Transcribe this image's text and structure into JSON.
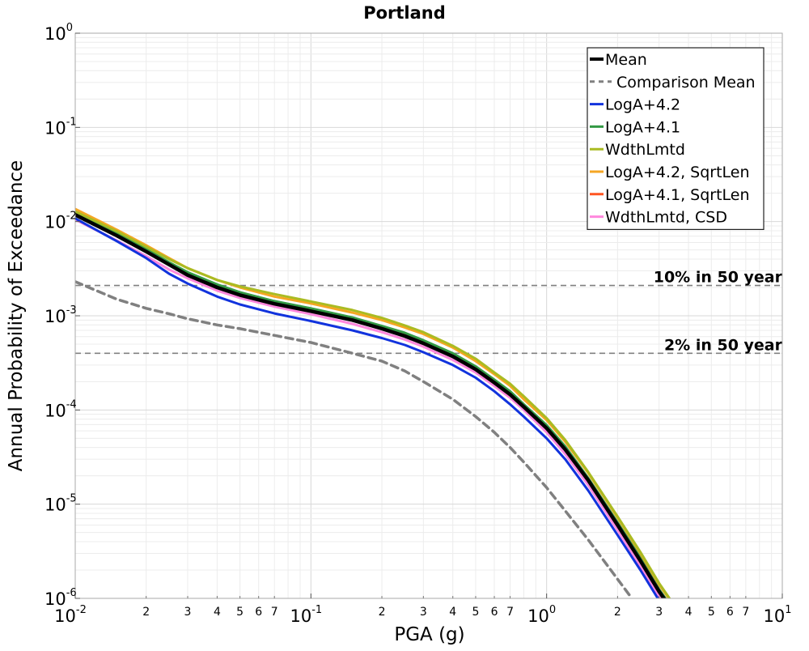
{
  "chart_data": {
    "type": "line",
    "title": "Portland",
    "xlabel": "PGA (g)",
    "ylabel": "Annual Probability of Exceedance",
    "xscale": "log",
    "yscale": "log",
    "xlim": [
      0.01,
      10
    ],
    "ylim": [
      1e-06,
      1
    ],
    "grid": true,
    "legend_position": "top-right",
    "x_major_ticks": [
      {
        "value": 0.01,
        "base": "10",
        "exp": "-2"
      },
      {
        "value": 0.1,
        "base": "10",
        "exp": "-1"
      },
      {
        "value": 1,
        "base": "10",
        "exp": "0"
      },
      {
        "value": 10,
        "base": "10",
        "exp": "1"
      }
    ],
    "x_minor_ticks": [
      {
        "value": 0.02,
        "label": "2"
      },
      {
        "value": 0.03,
        "label": "3"
      },
      {
        "value": 0.04,
        "label": "4"
      },
      {
        "value": 0.05,
        "label": "5"
      },
      {
        "value": 0.06,
        "label": "6"
      },
      {
        "value": 0.07,
        "label": "7"
      },
      {
        "value": 0.2,
        "label": "2"
      },
      {
        "value": 0.3,
        "label": "3"
      },
      {
        "value": 0.4,
        "label": "4"
      },
      {
        "value": 0.5,
        "label": "5"
      },
      {
        "value": 0.6,
        "label": "6"
      },
      {
        "value": 0.7,
        "label": "7"
      },
      {
        "value": 2,
        "label": "2"
      },
      {
        "value": 3,
        "label": "3"
      },
      {
        "value": 4,
        "label": "4"
      },
      {
        "value": 5,
        "label": "5"
      },
      {
        "value": 6,
        "label": "6"
      },
      {
        "value": 7,
        "label": "7"
      }
    ],
    "y_major_ticks": [
      {
        "value": 1,
        "base": "10",
        "exp": "0"
      },
      {
        "value": 0.1,
        "base": "10",
        "exp": "-1"
      },
      {
        "value": 0.01,
        "base": "10",
        "exp": "-2"
      },
      {
        "value": 0.001,
        "base": "10",
        "exp": "-3"
      },
      {
        "value": 0.0001,
        "base": "10",
        "exp": "-4"
      },
      {
        "value": 1e-05,
        "base": "10",
        "exp": "-5"
      },
      {
        "value": 1e-06,
        "base": "10",
        "exp": "-6"
      }
    ],
    "reference_lines": [
      {
        "label": "10% in 50 year",
        "y": 0.0021,
        "color": "#808080",
        "style": "dashed"
      },
      {
        "label": "2% in 50 year",
        "y": 0.0004,
        "color": "#808080",
        "style": "dashed"
      }
    ],
    "x": [
      0.01,
      0.015,
      0.02,
      0.025,
      0.03,
      0.04,
      0.05,
      0.07,
      0.1,
      0.15,
      0.2,
      0.25,
      0.3,
      0.4,
      0.5,
      0.6,
      0.7,
      0.8,
      1.0,
      1.2,
      1.5,
      2.0,
      2.5,
      3.0,
      3.4
    ],
    "series": [
      {
        "name": "Comparison Mean",
        "color": "#808080",
        "width": 3.5,
        "dashed": true,
        "x": [
          0.01,
          0.015,
          0.02,
          0.025,
          0.03,
          0.04,
          0.05,
          0.07,
          0.1,
          0.15,
          0.2,
          0.25,
          0.3,
          0.4,
          0.5,
          0.6,
          0.7,
          0.8,
          1.0,
          1.2,
          1.5,
          2.0,
          2.3
        ],
        "values": [
          0.0023,
          0.0015,
          0.0012,
          0.00105,
          0.00093,
          0.0008,
          0.00073,
          0.00062,
          0.00052,
          0.0004,
          0.00033,
          0.00026,
          0.0002,
          0.00013,
          8.5e-05,
          5.8e-05,
          4e-05,
          2.8e-05,
          1.5e-05,
          8.5e-06,
          4.2e-06,
          1.6e-06,
          1e-06
        ]
      },
      {
        "name": "WdthLmtd, CSD",
        "color": "#ff88dd",
        "width": 3,
        "values": [
          0.0105,
          0.0063,
          0.0043,
          0.0031,
          0.0025,
          0.00185,
          0.00155,
          0.00125,
          0.00104,
          0.00082,
          0.00067,
          0.00056,
          0.00047,
          0.00034,
          0.00025,
          0.00018,
          0.000135,
          0.0001,
          5.8e-05,
          3.4e-05,
          1.6e-05,
          5.3e-06,
          2.2e-06,
          1.05e-06,
          6.8e-07
        ]
      },
      {
        "name": "LogA+4.1, SqrtLen",
        "color": "#ff5522",
        "width": 3,
        "values": [
          0.0118,
          0.0071,
          0.0048,
          0.0035,
          0.0028,
          0.00205,
          0.0017,
          0.00137,
          0.00115,
          0.00092,
          0.00075,
          0.00063,
          0.00053,
          0.00038,
          0.00028,
          0.0002,
          0.00015,
          0.00011,
          6.6e-05,
          3.9e-05,
          1.85e-05,
          6.2e-06,
          2.6e-06,
          1.2e-06,
          7.8e-07
        ]
      },
      {
        "name": "LogA+4.1",
        "color": "#339944",
        "width": 3,
        "values": [
          0.0124,
          0.0075,
          0.0051,
          0.0037,
          0.0029,
          0.00215,
          0.00178,
          0.00143,
          0.0012,
          0.00096,
          0.00078,
          0.00066,
          0.00055,
          0.0004,
          0.00029,
          0.00021,
          0.000158,
          0.000115,
          6.9e-05,
          4.1e-05,
          1.9e-05,
          6.4e-06,
          2.7e-06,
          1.25e-06,
          8e-07
        ]
      },
      {
        "name": "LogA+4.2, SqrtLen",
        "color": "#f5a623",
        "width": 3,
        "values": [
          0.0136,
          0.0082,
          0.0056,
          0.0041,
          0.0032,
          0.0024,
          0.002,
          0.0016,
          0.00135,
          0.00108,
          0.0009,
          0.00075,
          0.00064,
          0.00046,
          0.00033,
          0.00024,
          0.00018,
          0.00013,
          7.8e-05,
          4.6e-05,
          2.15e-05,
          7.2e-06,
          3e-06,
          1.4e-06,
          9e-07
        ]
      },
      {
        "name": "WdthLmtd",
        "color": "#aabb22",
        "width": 3,
        "values": [
          0.0128,
          0.0079,
          0.0054,
          0.004,
          0.0032,
          0.0024,
          0.00205,
          0.0017,
          0.00142,
          0.00115,
          0.00095,
          0.00079,
          0.00067,
          0.00048,
          0.00035,
          0.00025,
          0.00019,
          0.00014,
          8.2e-05,
          4.8e-05,
          2.2e-05,
          7.4e-06,
          3.1e-06,
          1.45e-06,
          9.2e-07
        ]
      },
      {
        "name": "LogA+4.2",
        "color": "#1133dd",
        "width": 3,
        "values": [
          0.0108,
          0.0062,
          0.0041,
          0.0028,
          0.0022,
          0.0016,
          0.00132,
          0.00106,
          0.00088,
          0.0007,
          0.00058,
          0.00049,
          0.00041,
          0.0003,
          0.00022,
          0.000158,
          0.000115,
          8.5e-05,
          5e-05,
          3e-05,
          1.4e-05,
          4.7e-06,
          2e-06,
          9.5e-07,
          6.2e-07
        ]
      },
      {
        "name": "Mean",
        "color": "#000000",
        "width": 4.5,
        "values": [
          0.0118,
          0.0071,
          0.0048,
          0.0035,
          0.0027,
          0.002,
          0.00166,
          0.00134,
          0.00112,
          0.0009,
          0.00073,
          0.00061,
          0.00051,
          0.00037,
          0.00027,
          0.000195,
          0.000146,
          0.000108,
          6.4e-05,
          3.8e-05,
          1.8e-05,
          6e-06,
          2.5e-06,
          1.18e-06,
          7.6e-07
        ]
      }
    ],
    "legend_entries": [
      {
        "name": "Mean",
        "color": "#000000",
        "dashed": false,
        "width": 4
      },
      {
        "name": "Comparison Mean",
        "color": "#808080",
        "dashed": true,
        "width": 3
      },
      {
        "name": "LogA+4.2",
        "color": "#1133dd",
        "dashed": false,
        "width": 3
      },
      {
        "name": "LogA+4.1",
        "color": "#339944",
        "dashed": false,
        "width": 3
      },
      {
        "name": "WdthLmtd",
        "color": "#aabb22",
        "dashed": false,
        "width": 3
      },
      {
        "name": "LogA+4.2, SqrtLen",
        "color": "#f5a623",
        "dashed": false,
        "width": 3
      },
      {
        "name": "LogA+4.1, SqrtLen",
        "color": "#ff5522",
        "dashed": false,
        "width": 3
      },
      {
        "name": "WdthLmtd, CSD",
        "color": "#ff88dd",
        "dashed": false,
        "width": 3
      }
    ]
  }
}
